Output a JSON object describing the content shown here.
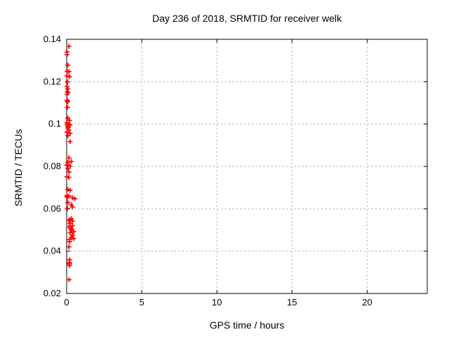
{
  "chart_data": {
    "type": "scatter",
    "title": "Day 236 of 2018, SRMTID for receiver welk",
    "xlabel": "GPS time / hours",
    "ylabel": "SRMTID / TECUs",
    "xlim": [
      0,
      24
    ],
    "ylim": [
      0.02,
      0.14
    ],
    "xticks": [
      0,
      5,
      10,
      15,
      20
    ],
    "xtick_labels": [
      "0",
      "5",
      "10",
      "15",
      "20"
    ],
    "yticks": [
      0.02,
      0.04,
      0.06,
      0.08,
      0.1,
      0.12,
      0.14
    ],
    "ytick_labels": [
      "0.02",
      "0.04",
      "0.06",
      "0.08",
      "0.1",
      "0.12",
      "0.14"
    ],
    "grid": true,
    "grid_style": "dotted",
    "legend": false,
    "marker": "plus",
    "series": [
      {
        "name": "SRMTID",
        "points": [
          [
            0.15,
            0.1367
          ],
          [
            0.03,
            0.134
          ],
          [
            0.03,
            0.1328
          ],
          [
            0.08,
            0.1278
          ],
          [
            0.03,
            0.1249
          ],
          [
            0.15,
            0.1247
          ],
          [
            0.02,
            0.1227
          ],
          [
            0.19,
            0.1223
          ],
          [
            0.05,
            0.1199
          ],
          [
            0.03,
            0.1177
          ],
          [
            0.08,
            0.1166
          ],
          [
            0.05,
            0.1151
          ],
          [
            0.1,
            0.1149
          ],
          [
            0.03,
            0.114
          ],
          [
            0.02,
            0.1111
          ],
          [
            0.08,
            0.1108
          ],
          [
            0.05,
            0.1105
          ],
          [
            0.05,
            0.1078
          ],
          [
            0.08,
            0.1028
          ],
          [
            0.19,
            0.1017
          ],
          [
            0.02,
            0.1006
          ],
          [
            0.03,
            0.0997
          ],
          [
            0.23,
            0.0995
          ],
          [
            0.08,
            0.099
          ],
          [
            0.1,
            0.0983
          ],
          [
            0.15,
            0.0973
          ],
          [
            0.02,
            0.0962
          ],
          [
            0.23,
            0.0956
          ],
          [
            0.08,
            0.0945
          ],
          [
            0.23,
            0.0917
          ],
          [
            0.15,
            0.084
          ],
          [
            0.31,
            0.0823
          ],
          [
            0.08,
            0.0818
          ],
          [
            0.02,
            0.0807
          ],
          [
            0.05,
            0.0805
          ],
          [
            0.23,
            0.0801
          ],
          [
            0.08,
            0.079
          ],
          [
            0.15,
            0.0773
          ],
          [
            0.02,
            0.0751
          ],
          [
            0.15,
            0.0748
          ],
          [
            0.08,
            0.0691
          ],
          [
            0.23,
            0.0687
          ],
          [
            0.02,
            0.0662
          ],
          [
            0.15,
            0.066
          ],
          [
            0.03,
            0.0657
          ],
          [
            0.05,
            0.0655
          ],
          [
            0.39,
            0.0652
          ],
          [
            0.55,
            0.0647
          ],
          [
            0.08,
            0.063
          ],
          [
            0.31,
            0.0619
          ],
          [
            0.39,
            0.0608
          ],
          [
            0.05,
            0.0601
          ],
          [
            0.31,
            0.0553
          ],
          [
            0.15,
            0.0547
          ],
          [
            0.2,
            0.0545
          ],
          [
            0.39,
            0.0542
          ],
          [
            0.23,
            0.0531
          ],
          [
            0.39,
            0.052
          ],
          [
            0.15,
            0.0514
          ],
          [
            0.28,
            0.0505
          ],
          [
            0.31,
            0.0503
          ],
          [
            0.34,
            0.05
          ],
          [
            0.47,
            0.0492
          ],
          [
            0.23,
            0.0487
          ],
          [
            0.39,
            0.0476
          ],
          [
            0.31,
            0.0465
          ],
          [
            0.47,
            0.0459
          ],
          [
            0.2,
            0.0455
          ],
          [
            0.2,
            0.0445
          ],
          [
            0.15,
            0.042
          ],
          [
            0.19,
            0.0359
          ],
          [
            0.19,
            0.0347
          ],
          [
            0.19,
            0.034
          ],
          [
            0.19,
            0.0332
          ],
          [
            0.16,
            0.0265
          ]
        ]
      }
    ]
  },
  "colors": {
    "marker": "#ff0000",
    "grid": "#a8a8a8",
    "border": "#000000",
    "text": "#000000",
    "background": "#ffffff"
  }
}
